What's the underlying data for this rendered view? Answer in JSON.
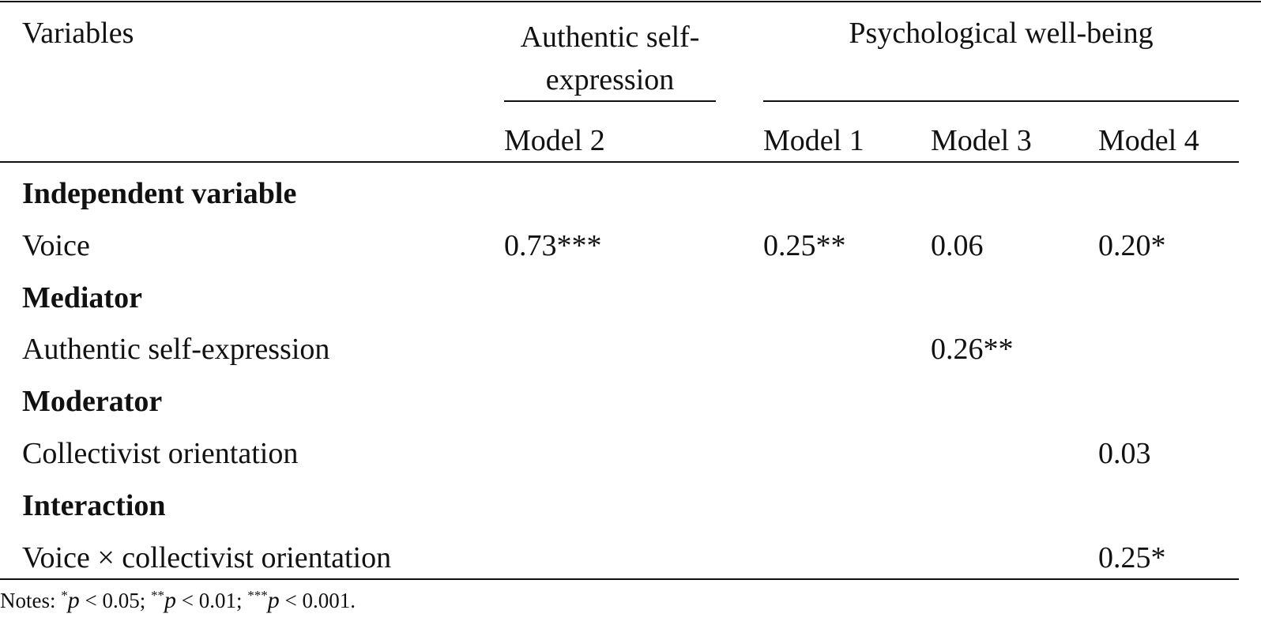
{
  "table": {
    "header": {
      "variables": "Variables",
      "group1": "Authentic self-expression",
      "group2": "Psychological well-being",
      "models": [
        "Model 2",
        "Model 1",
        "Model 3",
        "Model 4"
      ]
    },
    "rows": [
      {
        "label": "Independent variable",
        "section": true
      },
      {
        "label": "Voice",
        "cells": [
          "0.73***",
          "0.25**",
          "0.06",
          "0.20*"
        ]
      },
      {
        "label": "Mediator",
        "section": true
      },
      {
        "label": "Authentic self-expression",
        "cells": [
          null,
          null,
          "0.26**",
          null
        ]
      },
      {
        "label": "Moderator",
        "section": true
      },
      {
        "label": "Collectivist orientation",
        "cells": [
          null,
          null,
          null,
          "0.03"
        ]
      },
      {
        "label": "Interaction",
        "section": true
      },
      {
        "label": "Voice × collectivist orientation",
        "cells": [
          null,
          null,
          null,
          "0.25*"
        ]
      }
    ]
  },
  "notes": {
    "label": "Notes:",
    "items": [
      {
        "sup": "*",
        "italic": "p",
        "text": "< 0.05;"
      },
      {
        "sup": "**",
        "italic": "p",
        "text": "< 0.01;"
      },
      {
        "sup": "***",
        "italic": "p",
        "text": "< 0.001."
      }
    ]
  }
}
